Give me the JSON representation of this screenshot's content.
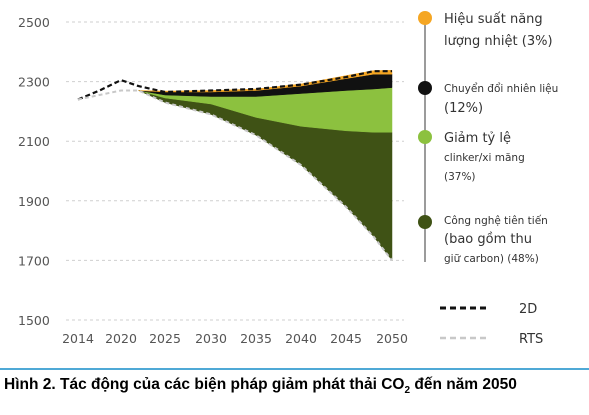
{
  "chart_data": {
    "type": "area",
    "x": [
      2014,
      2017,
      2020,
      2022,
      2025,
      2030,
      2035,
      2040,
      2045,
      2048,
      2050
    ],
    "x_ticks": [
      "2014",
      "2020",
      "2025",
      "2030",
      "2035",
      "2040",
      "2045",
      "2050"
    ],
    "y_ticks": [
      "2500",
      "2300",
      "2100",
      "1900",
      "1700",
      "1500"
    ],
    "ylim": [
      1500,
      2500
    ],
    "xlim": [
      2014,
      2050
    ],
    "grid": "horizontal dashed",
    "lines": [
      {
        "name": "2D",
        "style": "black dashed",
        "x": [
          2014,
          2017,
          2020,
          2022,
          2025,
          2030,
          2035,
          2040,
          2045,
          2048,
          2050
        ],
        "values": [
          2240,
          2270,
          2305,
          2285,
          2265,
          2270,
          2275,
          2290,
          2315,
          2335,
          2335
        ]
      },
      {
        "name": "RTS",
        "style": "light grey dashed",
        "x": [
          2014,
          2017,
          2020,
          2022,
          2025,
          2030,
          2035,
          2040,
          2045,
          2048,
          2050
        ],
        "values": [
          2240,
          2255,
          2270,
          2270,
          2230,
          2190,
          2120,
          2020,
          1880,
          1780,
          1700
        ]
      }
    ],
    "series_x": [
      2022,
      2025,
      2030,
      2035,
      2040,
      2045,
      2048,
      2050
    ],
    "series": [
      {
        "name": "Công nghệ tiên tiến (bao gồm thu giữ carbon) (48%)",
        "color": "#3f5215",
        "lower": [
          2270,
          2230,
          2190,
          2120,
          2020,
          1880,
          1780,
          1700
        ],
        "upper": [
          2270,
          2245,
          2225,
          2180,
          2150,
          2135,
          2130,
          2130
        ]
      },
      {
        "name": "Giảm tỷ lệ clinker/xi măng (37%)",
        "color": "#8cc13f",
        "lower": [
          2270,
          2245,
          2225,
          2180,
          2150,
          2135,
          2130,
          2130
        ],
        "upper": [
          2270,
          2255,
          2250,
          2250,
          2260,
          2270,
          2275,
          2280
        ]
      },
      {
        "name": "Chuyển đổi nhiên liệu (12%)",
        "color": "#111111",
        "lower": [
          2270,
          2255,
          2250,
          2250,
          2260,
          2270,
          2275,
          2280
        ],
        "upper": [
          2270,
          2265,
          2265,
          2270,
          2285,
          2310,
          2325,
          2325
        ]
      },
      {
        "name": "Hiệu suất năng lượng nhiệt (3%)",
        "color": "#f5a623",
        "lower": [
          2270,
          2265,
          2265,
          2270,
          2285,
          2310,
          2325,
          2325
        ],
        "upper": [
          2270,
          2268,
          2270,
          2275,
          2292,
          2320,
          2337,
          2338
        ]
      }
    ],
    "legend": {
      "placement": "right",
      "items": [
        {
          "color": "#f5a623",
          "lines": [
            "Hiệu suất năng",
            "lượng nhiệt (3%)"
          ]
        },
        {
          "color": "#111111",
          "lines": [
            "Chuyển đổi nhiên liệu",
            "(12%)"
          ]
        },
        {
          "color": "#8cc13f",
          "lines": [
            "Giảm tỷ lệ",
            "clinker/xi măng",
            "(37%)"
          ]
        },
        {
          "color": "#3f5215",
          "lines": [
            "Công nghệ tiên tiến",
            "(bao gồm thu",
            "giữ carbon) (48%)"
          ]
        }
      ],
      "line_items": [
        {
          "label": "2D",
          "color": "#111111"
        },
        {
          "label": "RTS",
          "color": "#c8c8c8"
        }
      ]
    }
  },
  "caption": {
    "before": "Hình 2. Tác động của các biện pháp giảm phát thải CO",
    "subscript": "2",
    "after": " đến năm 2050"
  }
}
